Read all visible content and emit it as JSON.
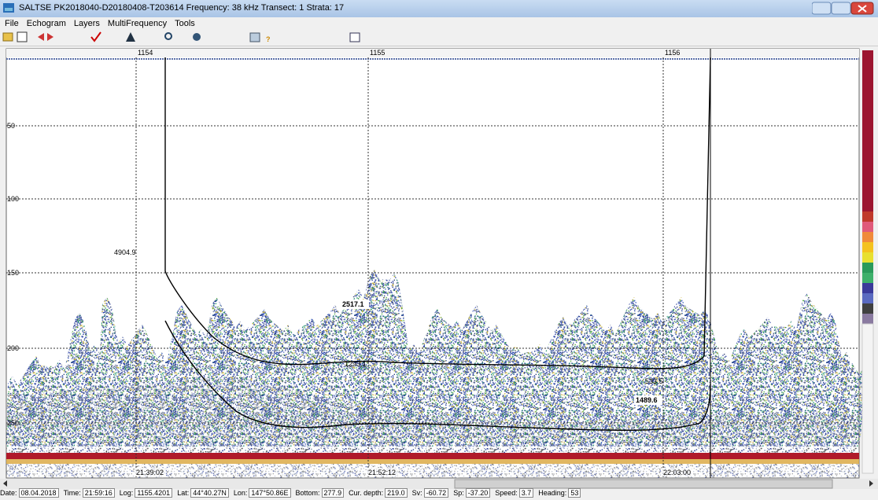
{
  "window": {
    "title": "SALTSE  PK2018040-D20180408-T203614  Frequency: 38 kHz  Transect: 1  Strata: 17"
  },
  "menu": [
    "File",
    "Echogram",
    "Layers",
    "MultiFrequency",
    "Tools"
  ],
  "echogram": {
    "log_marks": [
      "1154",
      "1155",
      "1156"
    ],
    "depth_marks": [
      "50",
      "100",
      "150",
      "200",
      "250"
    ],
    "annotations": [
      "4904.9",
      "2517.1",
      "1489.6",
      "1293.1",
      "533.5"
    ],
    "times": [
      "21:39:02",
      "21:52:12",
      "22:03:00"
    ]
  },
  "status": [
    {
      "label": "Date:",
      "value": "08.04.2018"
    },
    {
      "label": "Time:",
      "value": "21:59:16"
    },
    {
      "label": "Log:",
      "value": "1155.4201"
    },
    {
      "label": "Lat:",
      "value": "44°40.27N"
    },
    {
      "label": "Lon:",
      "value": "147°50.86E"
    },
    {
      "label": "Bottom:",
      "value": "277.9"
    },
    {
      "label": "Cur. depth:",
      "value": "219.0"
    },
    {
      "label": "Sv:",
      "value": "-60.72"
    },
    {
      "label": "Sp:",
      "value": "-37.20"
    },
    {
      "label": "Speed:",
      "value": "3.7"
    },
    {
      "label": "Heading:",
      "value": "53"
    }
  ]
}
